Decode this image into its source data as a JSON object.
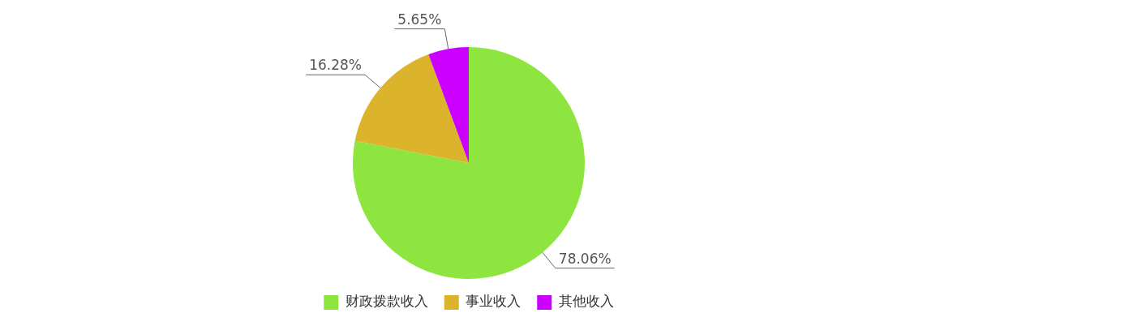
{
  "chart_data": {
    "type": "pie",
    "categories": [
      "财政拨款收入",
      "事业收入",
      "其他收入"
    ],
    "values": [
      78.06,
      16.28,
      5.65
    ],
    "value_labels": [
      "78.06%",
      "16.28%",
      "5.65%"
    ],
    "colors": [
      "#8ee53f",
      "#dbb42c",
      "#cc00ff"
    ],
    "legend": "bottom"
  }
}
